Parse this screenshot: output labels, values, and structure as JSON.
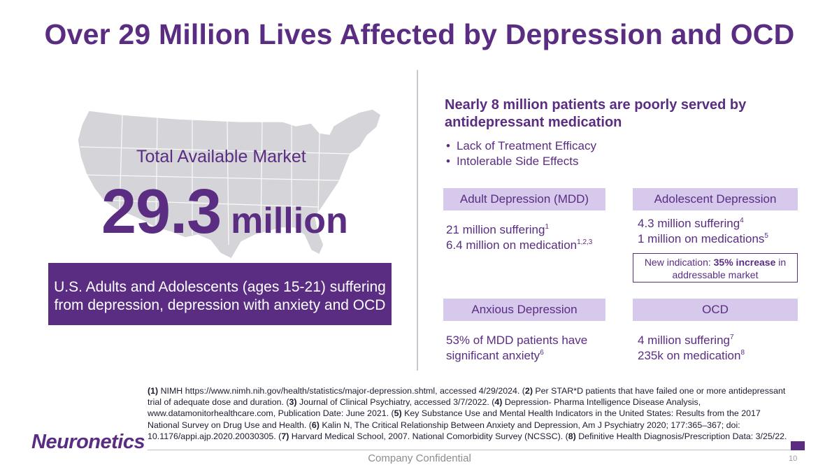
{
  "title": "Over 29 Million Lives Affected by Depression and OCD",
  "left": {
    "tam_label": "Total Available Market",
    "tam_value": "29.3",
    "tam_unit": "million",
    "box_text": "U.S. Adults and Adolescents (ages 15-21) suffering from depression, depression with anxiety and OCD"
  },
  "right": {
    "heading": "Nearly 8 million patients are poorly served by antidepressant medication",
    "bullets": [
      "Lack of Treatment Efficacy",
      "Intolerable Side Effects"
    ],
    "mdd": {
      "label": "Adult Depression (MDD)",
      "line1": "21 million suffering",
      "line1_sup": "1",
      "line2": "6.4 million on medication",
      "line2_sup": "1,2,3"
    },
    "adolescent": {
      "label": "Adolescent Depression",
      "line1": "4.3 million suffering",
      "line1_sup": "4",
      "line2": "1 million on medications",
      "line2_sup": "5",
      "note_prefix": "New indication: ",
      "note_bold": "35% increase",
      "note_suffix": " in addressable market"
    },
    "anxious": {
      "label": "Anxious Depression",
      "line1": "53% of MDD patients have",
      "line2": "significant anxiety",
      "line2_sup": "6"
    },
    "ocd": {
      "label": "OCD",
      "line1": "4 million suffering",
      "line1_sup": "7",
      "line2": "235k on medication",
      "line2_sup": "8"
    }
  },
  "footnotes": [
    {
      "num": "(1)",
      "text": " NIMH https://www.nimh.nih.gov/health/statistics/major-depression.shtml, accessed 4/29/2024. ("
    },
    {
      "num": "2)",
      "text": " Per STAR*D patients that have failed one or more antidepressant trial of adequate dose and duration. ("
    },
    {
      "num": "3)",
      "text": " Journal of Clinical Psychiatry, accessed 3/7/2022. ("
    },
    {
      "num": "4)",
      "text": " Depression- Pharma Intelligence Disease Analysis, www.datamonitorhealthcare.com, Publication Date: June 2021. ("
    },
    {
      "num": "5)",
      "text": " Key Substance Use and Mental Health Indicators in the United States: Results from the 2017 National Survey on Drug Use and Health. ("
    },
    {
      "num": "6)",
      "text": " Kalin N, The Critical Relationship Between Anxiety and Depression, Am J Psychiatry 2020; 177:365–367; doi: 10.1176/appi.ajp.2020.20030305. ("
    },
    {
      "num": "7)",
      "text": " Harvard Medical School, 2007. National Comorbidity Survey (NCSSC). ("
    },
    {
      "num": "8)",
      "text": " Definitive Health Diagnosis/Prescription Data: 3/25/22."
    }
  ],
  "footer": {
    "logo": "Neuronetics",
    "confidential": "Company Confidential",
    "page_number": "10"
  }
}
